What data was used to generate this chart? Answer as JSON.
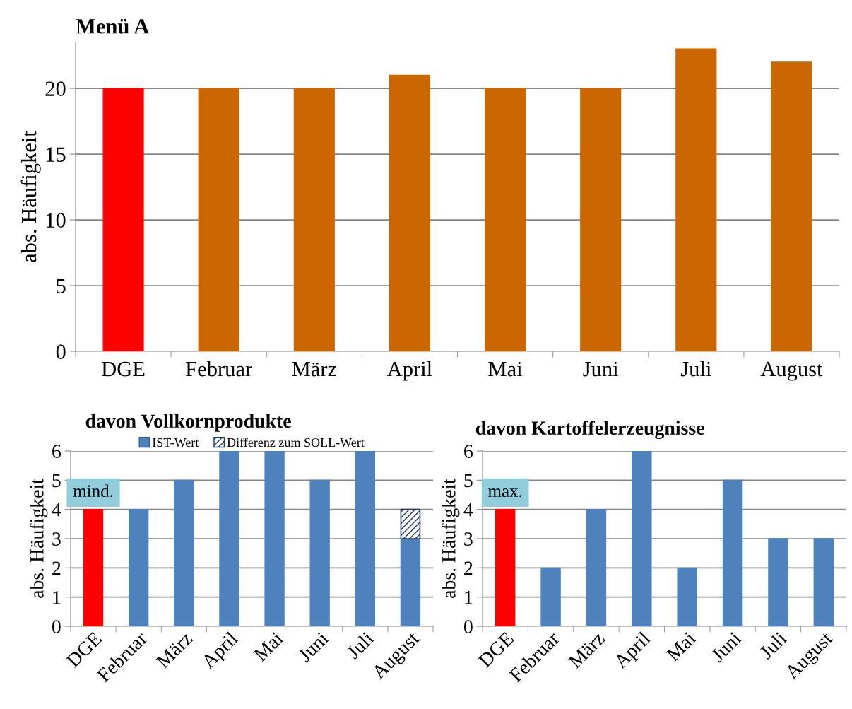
{
  "chart_data": [
    {
      "type": "bar",
      "title": "Menü A",
      "ylabel": "abs. Häufigkeit",
      "categories": [
        "DGE",
        "Februar",
        "März",
        "April",
        "Mai",
        "Juni",
        "Juli",
        "August"
      ],
      "series": [
        {
          "values": [
            20,
            20,
            20,
            21,
            20,
            20,
            23,
            22
          ],
          "colors": [
            "#ff0000",
            "#cc6600",
            "#cc6600",
            "#cc6600",
            "#cc6600",
            "#cc6600",
            "#cc6600",
            "#cc6600"
          ]
        }
      ],
      "ylim": [
        0,
        23.5
      ],
      "yticks": [
        0,
        5,
        10,
        15,
        20
      ],
      "grid": "y"
    },
    {
      "type": "bar",
      "title": "davon Vollkornprodukte",
      "ylabel": "abs. Häufigkeit",
      "categories": [
        "DGE",
        "Februar",
        "März",
        "April",
        "Mai",
        "Juni",
        "Juli",
        "August"
      ],
      "stacked": true,
      "series": [
        {
          "name": "IST-Wert",
          "color": "#4f81bd",
          "values": [
            4,
            4,
            5,
            6,
            6,
            5,
            6,
            3
          ],
          "colors": [
            "#ff0000",
            "#4f81bd",
            "#4f81bd",
            "#4f81bd",
            "#4f81bd",
            "#4f81bd",
            "#4f81bd",
            "#4f81bd"
          ]
        },
        {
          "name": "Differenz zum SOLL-Wert",
          "color": "#1f3864",
          "values": [
            null,
            null,
            null,
            null,
            null,
            null,
            null,
            1
          ]
        }
      ],
      "annotations": [
        {
          "text": "mind.",
          "x": "DGE",
          "y": 4
        }
      ],
      "ylim": [
        0,
        6
      ],
      "yticks": [
        0,
        1,
        2,
        3,
        4,
        5,
        6
      ],
      "grid": "y",
      "legend": "top"
    },
    {
      "type": "bar",
      "title": "davon Kartoffelerzeugnisse",
      "ylabel": "abs. Häufigkeit",
      "categories": [
        "DGE",
        "Februar",
        "März",
        "April",
        "Mai",
        "Juni",
        "Juli",
        "August"
      ],
      "series": [
        {
          "values": [
            4,
            2,
            4,
            6,
            2,
            5,
            3,
            3
          ],
          "colors": [
            "#ff0000",
            "#4f81bd",
            "#4f81bd",
            "#4f81bd",
            "#4f81bd",
            "#4f81bd",
            "#4f81bd",
            "#4f81bd"
          ]
        }
      ],
      "annotations": [
        {
          "text": "max.",
          "x": "DGE",
          "y": 4
        }
      ],
      "ylim": [
        0,
        6
      ],
      "yticks": [
        0,
        1,
        2,
        3,
        4,
        5,
        6
      ],
      "grid": "y"
    }
  ]
}
